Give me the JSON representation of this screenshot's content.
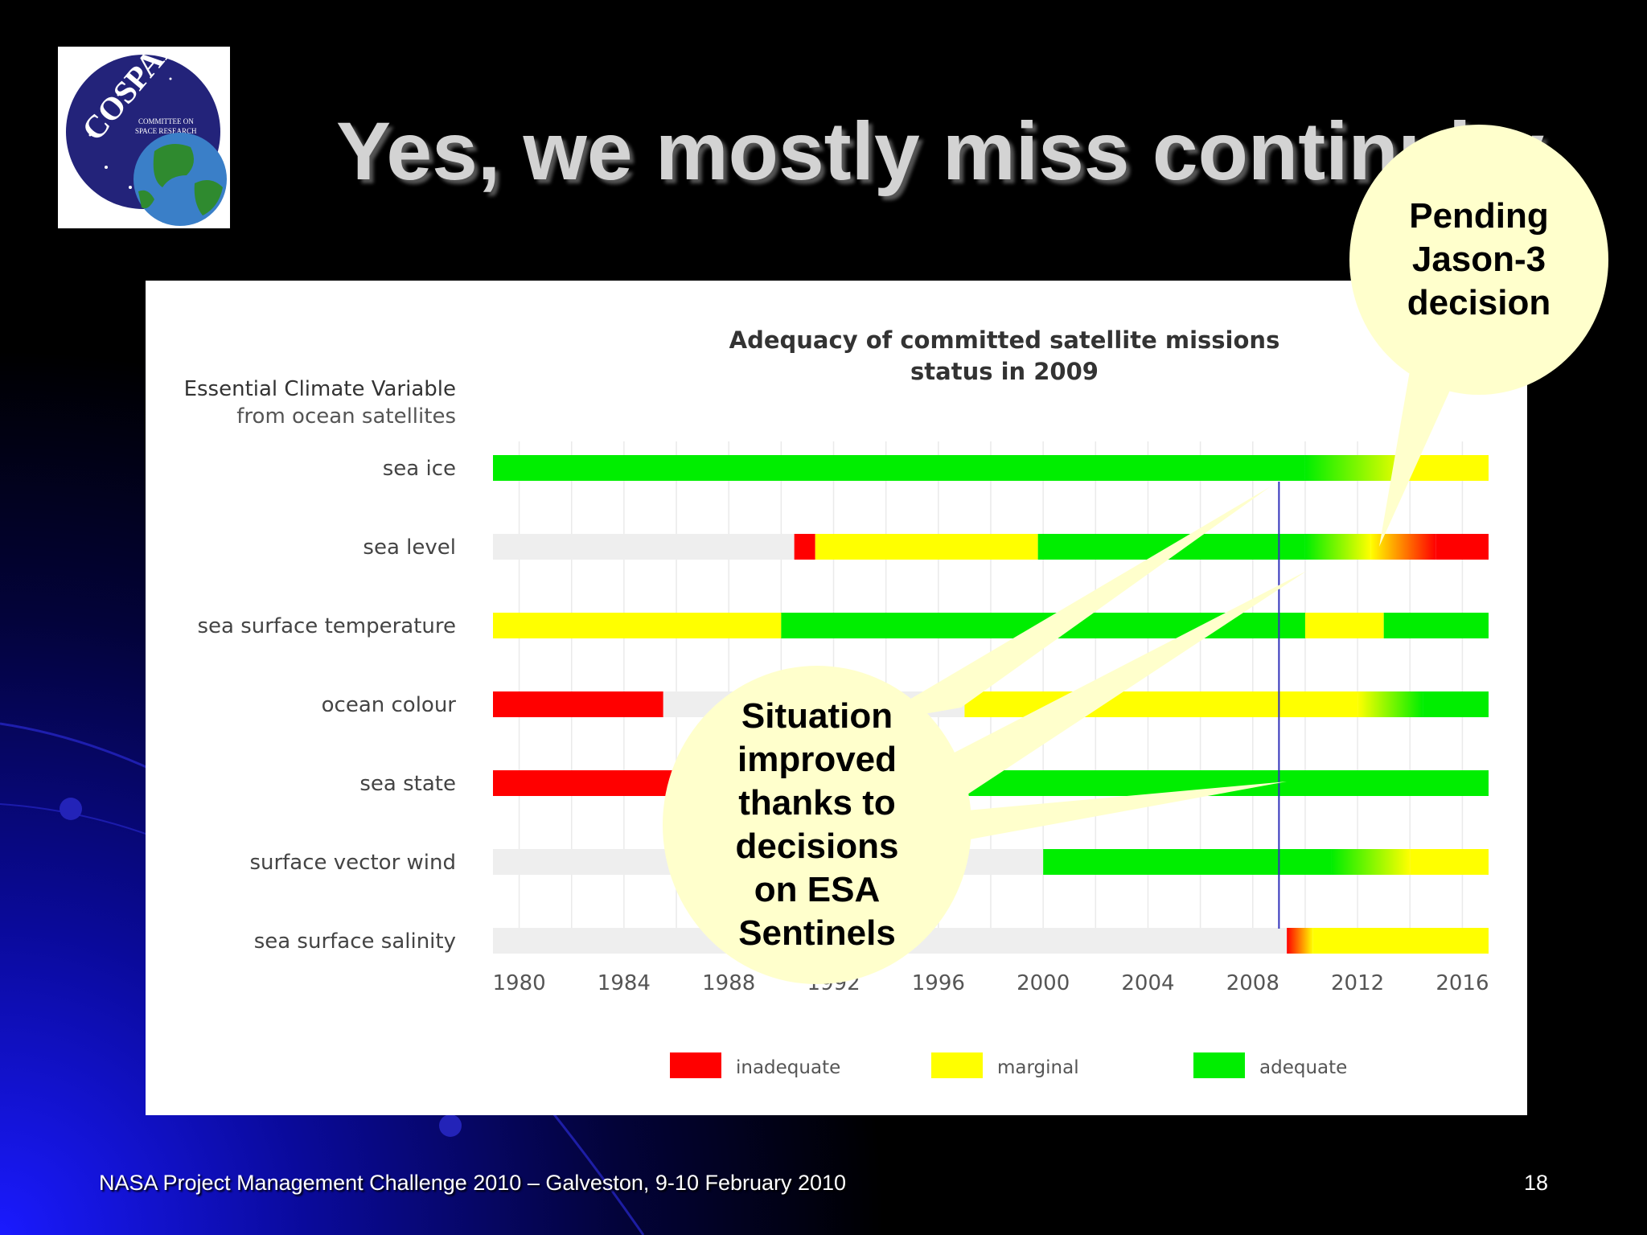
{
  "slide": {
    "title": "Yes, we mostly miss continuity",
    "footer": "NASA Project Management Challenge 2010 – Galveston, 9-10 February 2010",
    "page_number": "18"
  },
  "logo": {
    "text": "COSPAR",
    "subtext_line1": "COMMITTEE ON",
    "subtext_line2": "SPACE RESEARCH",
    "icon": "globe-icon"
  },
  "callouts": {
    "jason": "Pending Jason-3 decision",
    "esa": "Situation improved thanks to decisions on ESA Sentinels"
  },
  "colors": {
    "inadequate": "#ff0000",
    "marginal": "#ffff00",
    "adequate": "#00ee00",
    "none": "#eeeeee",
    "callout": "#ffffcc",
    "title_text": "#d3d3d3"
  },
  "chart_data": {
    "type": "timeline",
    "title_line1": "Adequacy of committed satellite missions",
    "title_line2": "status in 2009",
    "ylabel_line1": "Essential Climate Variable",
    "ylabel_line2": "from ocean satellites",
    "xlim": [
      1979,
      2017
    ],
    "xticks": [
      1980,
      1984,
      1988,
      1992,
      1996,
      2000,
      2004,
      2008,
      2012,
      2016
    ],
    "current_year": 2009,
    "legend": [
      {
        "label": "inadequate",
        "status": "inadequate"
      },
      {
        "label": "marginal",
        "status": "marginal"
      },
      {
        "label": "adequate",
        "status": "adequate"
      }
    ],
    "rows": [
      {
        "name": "sea ice",
        "segments": [
          {
            "from": 1979,
            "to": 2010,
            "status": "adequate"
          },
          {
            "from": 2010,
            "to": 2014,
            "status": "adequate",
            "fade_to": "marginal"
          },
          {
            "from": 2014,
            "to": 2017,
            "status": "marginal"
          }
        ]
      },
      {
        "name": "sea level",
        "segments": [
          {
            "from": 1979,
            "to": 1990.5,
            "status": "none"
          },
          {
            "from": 1990.5,
            "to": 1991.3,
            "status": "inadequate"
          },
          {
            "from": 1991.3,
            "to": 1999.8,
            "status": "marginal"
          },
          {
            "from": 1999.8,
            "to": 2010,
            "status": "adequate"
          },
          {
            "from": 2010,
            "to": 2012.5,
            "status": "adequate",
            "fade_to": "marginal"
          },
          {
            "from": 2012.5,
            "to": 2015,
            "status": "marginal",
            "fade_to": "inadequate"
          },
          {
            "from": 2015,
            "to": 2017,
            "status": "inadequate"
          }
        ]
      },
      {
        "name": "sea surface temperature",
        "segments": [
          {
            "from": 1979,
            "to": 1990,
            "status": "marginal"
          },
          {
            "from": 1990,
            "to": 2010,
            "status": "adequate"
          },
          {
            "from": 2010,
            "to": 2013,
            "status": "marginal"
          },
          {
            "from": 2013,
            "to": 2017,
            "status": "adequate"
          }
        ]
      },
      {
        "name": "ocean colour",
        "segments": [
          {
            "from": 1979,
            "to": 1985.5,
            "status": "inadequate"
          },
          {
            "from": 1985.5,
            "to": 1997,
            "status": "none"
          },
          {
            "from": 1997,
            "to": 2012,
            "status": "marginal"
          },
          {
            "from": 2012,
            "to": 2014.5,
            "status": "marginal",
            "fade_to": "adequate"
          },
          {
            "from": 2014.5,
            "to": 2017,
            "status": "adequate"
          }
        ]
      },
      {
        "name": "sea state",
        "segments": [
          {
            "from": 1979,
            "to": 1986,
            "status": "inadequate"
          },
          {
            "from": 1986,
            "to": 1991.5,
            "status": "none"
          },
          {
            "from": 1991.5,
            "to": 2017,
            "status": "adequate"
          }
        ]
      },
      {
        "name": "surface vector wind",
        "segments": [
          {
            "from": 1979,
            "to": 2000,
            "status": "none"
          },
          {
            "from": 2000,
            "to": 2011,
            "status": "adequate"
          },
          {
            "from": 2011,
            "to": 2014,
            "status": "adequate",
            "fade_to": "marginal"
          },
          {
            "from": 2014,
            "to": 2017,
            "status": "marginal"
          }
        ]
      },
      {
        "name": "sea surface salinity",
        "segments": [
          {
            "from": 1979,
            "to": 2009.3,
            "status": "none"
          },
          {
            "from": 2009.3,
            "to": 2010.3,
            "status": "inadequate",
            "fade_to": "marginal"
          },
          {
            "from": 2010.3,
            "to": 2017,
            "status": "marginal"
          }
        ]
      }
    ]
  }
}
